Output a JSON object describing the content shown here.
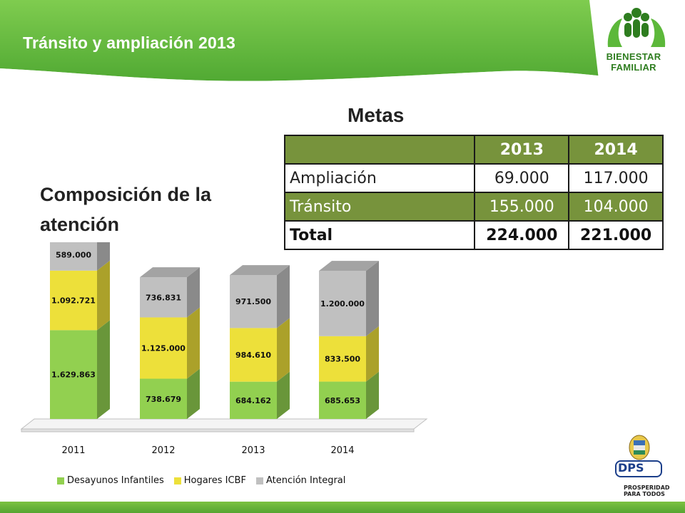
{
  "header": {
    "title": "Tránsito y ampliación 2013",
    "logo_line1": "BIENESTAR",
    "logo_line2": "FAMILIAR"
  },
  "metas": {
    "title": "Metas",
    "columns": [
      "",
      "2013",
      "2014"
    ],
    "rows": [
      {
        "label": "Ampliación",
        "v2013": "69.000",
        "v2014": "117.000"
      },
      {
        "label": "Tránsito",
        "v2013": "155.000",
        "v2014": "104.000"
      },
      {
        "label": "Total",
        "v2013": "224.000",
        "v2014": "221.000"
      }
    ]
  },
  "composition_title": "Composición de la atención",
  "chart_data": {
    "type": "bar",
    "stacked": true,
    "three_d": true,
    "categories": [
      "2011",
      "2012",
      "2013",
      "2014"
    ],
    "tick_labels": [
      "2011",
      "2012",
      "2013",
      "2014"
    ],
    "series": [
      {
        "name": "Desayunos Infantiles",
        "legend_label": "Desayunos Infantiles",
        "color": "#92d050",
        "values": [
          1629863,
          738679,
          684162,
          685653
        ],
        "labels": [
          "1.629.863",
          "738.679",
          "684.162",
          "685.653"
        ]
      },
      {
        "name": "Hogares ICBF",
        "legend_label": "Hogares ICBF",
        "color": "#ede03a",
        "values": [
          1092721,
          1125000,
          984610,
          833500
        ],
        "labels": [
          "1.092.721",
          "1.125.000",
          "984.610",
          "833.500"
        ]
      },
      {
        "name": "Atención Integral",
        "legend_label": "Atención Integral",
        "color": "#c0c0c0",
        "values": [
          589000,
          736831,
          971500,
          1200000
        ],
        "labels": [
          "589.000",
          "736.831",
          "971.500",
          "1.200.000"
        ]
      }
    ],
    "title": "",
    "xlabel": "",
    "ylabel": "",
    "ylim": [
      0,
      3400000
    ],
    "grid": false,
    "legend_position": "bottom"
  },
  "footer": {
    "dps_label": "DPS",
    "dps_tagline": "PROSPERIDAD PARA TODOS"
  },
  "colors": {
    "header_green": "#6abf45",
    "header_dark": "#3f9a2c",
    "table_green": "#77933c",
    "desayunos": "#92d050",
    "hogares": "#ede03a",
    "integral": "#c0c0c0"
  }
}
